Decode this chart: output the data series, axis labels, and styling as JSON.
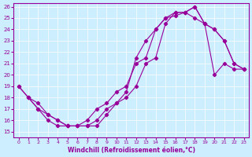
{
  "xlabel": "Windchill (Refroidissement éolien,°C)",
  "ylabel": "",
  "background_color": "#cceeff",
  "line_color": "#990099",
  "xlim": [
    0,
    23
  ],
  "ylim": [
    15,
    26
  ],
  "xticks": [
    0,
    1,
    2,
    3,
    4,
    5,
    6,
    7,
    8,
    9,
    10,
    11,
    12,
    13,
    14,
    15,
    16,
    17,
    18,
    19,
    20,
    21,
    22,
    23
  ],
  "yticks": [
    15,
    16,
    17,
    18,
    19,
    20,
    21,
    22,
    23,
    24,
    25,
    26
  ],
  "line1_x": [
    0,
    1,
    2,
    3,
    4,
    5,
    6,
    7,
    8,
    9,
    10,
    11,
    12,
    13,
    14,
    15,
    16,
    17,
    18,
    19,
    20,
    21,
    22,
    23
  ],
  "line1_y": [
    19,
    18,
    17,
    16,
    15.5,
    15.5,
    15.5,
    15.5,
    16,
    17,
    17.5,
    18.5,
    21.5,
    23,
    24,
    25,
    25.2,
    25.5,
    26,
    24.5,
    24,
    23,
    21,
    20.5
  ],
  "line2_x": [
    0,
    1,
    2,
    3,
    4,
    5,
    6,
    7,
    8,
    9,
    10,
    11,
    12,
    13,
    14,
    15,
    16,
    17,
    18,
    19,
    20,
    21,
    22,
    23
  ],
  "line2_y": [
    19,
    18,
    17.5,
    16.5,
    16,
    15.5,
    15.5,
    16,
    17,
    17.5,
    18.5,
    19,
    21,
    21.5,
    24,
    25,
    25.5,
    25.5,
    25,
    24.5,
    20,
    21,
    20.5,
    20.5
  ],
  "line3_x": [
    1,
    2,
    3,
    4,
    5,
    6,
    7,
    8,
    9,
    10,
    11,
    12,
    13,
    14,
    15,
    16,
    17,
    18,
    19,
    20,
    21,
    22,
    23
  ],
  "line3_y": [
    18,
    17,
    16.5,
    16,
    15.5,
    15.5,
    15.5,
    15.5,
    16.5,
    17.5,
    18,
    19,
    21,
    21.5,
    24.5,
    25.5,
    25.5,
    26,
    24.5,
    24,
    23,
    21,
    20.5
  ]
}
